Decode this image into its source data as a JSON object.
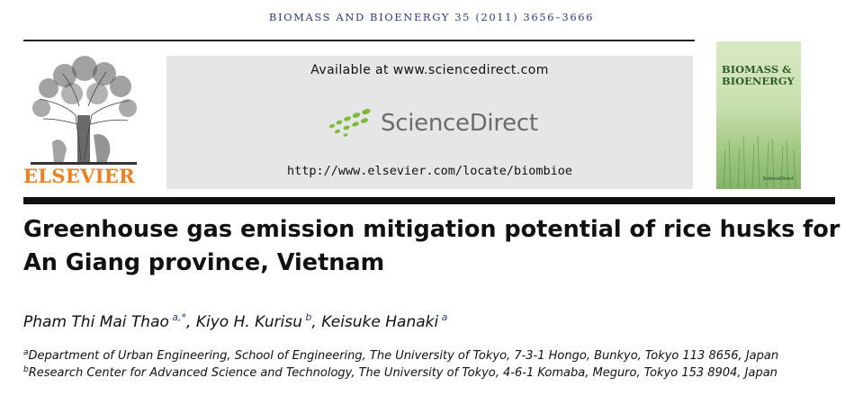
{
  "header": {
    "journal_citation": "BIOMASS AND BIOENERGY 35 (2011) 3656–3666"
  },
  "publisher": {
    "name": "ELSEVIER"
  },
  "banner": {
    "available_text": "Available at www.sciencedirect.com",
    "brand_name": "ScienceDirect",
    "url": "http://www.elsevier.com/locate/biombioe"
  },
  "cover": {
    "title_line1": "BIOMASS &",
    "title_line2": "BIOENERGY",
    "footer_brand": "ScienceDirect"
  },
  "article": {
    "title": "Greenhouse gas emission mitigation potential of rice husks for An Giang province, Vietnam",
    "authors": [
      {
        "name": "Pham Thi Mai Thao",
        "marks": "a,*",
        "sep": ", "
      },
      {
        "name": "Kiyo H. Kurisu",
        "marks": "b",
        "sep": ", "
      },
      {
        "name": "Keisuke Hanaki",
        "marks": "a",
        "sep": ""
      }
    ],
    "affiliations": [
      {
        "mark": "a",
        "text": "Department of Urban Engineering, School of Engineering, The University of Tokyo, 7-3-1 Hongo, Bunkyo, Tokyo 113 8656, Japan"
      },
      {
        "mark": "b",
        "text": "Research Center for Advanced Science and Technology, The University of Tokyo, 4-6-1 Komaba, Meguro, Tokyo 153 8904, Japan"
      }
    ]
  },
  "colors": {
    "publisher_orange": "#f07f1e",
    "journal_blue": "#2b3a8a",
    "sd_green": "#7dbb3b",
    "sd_gray": "#6b6b6b"
  }
}
